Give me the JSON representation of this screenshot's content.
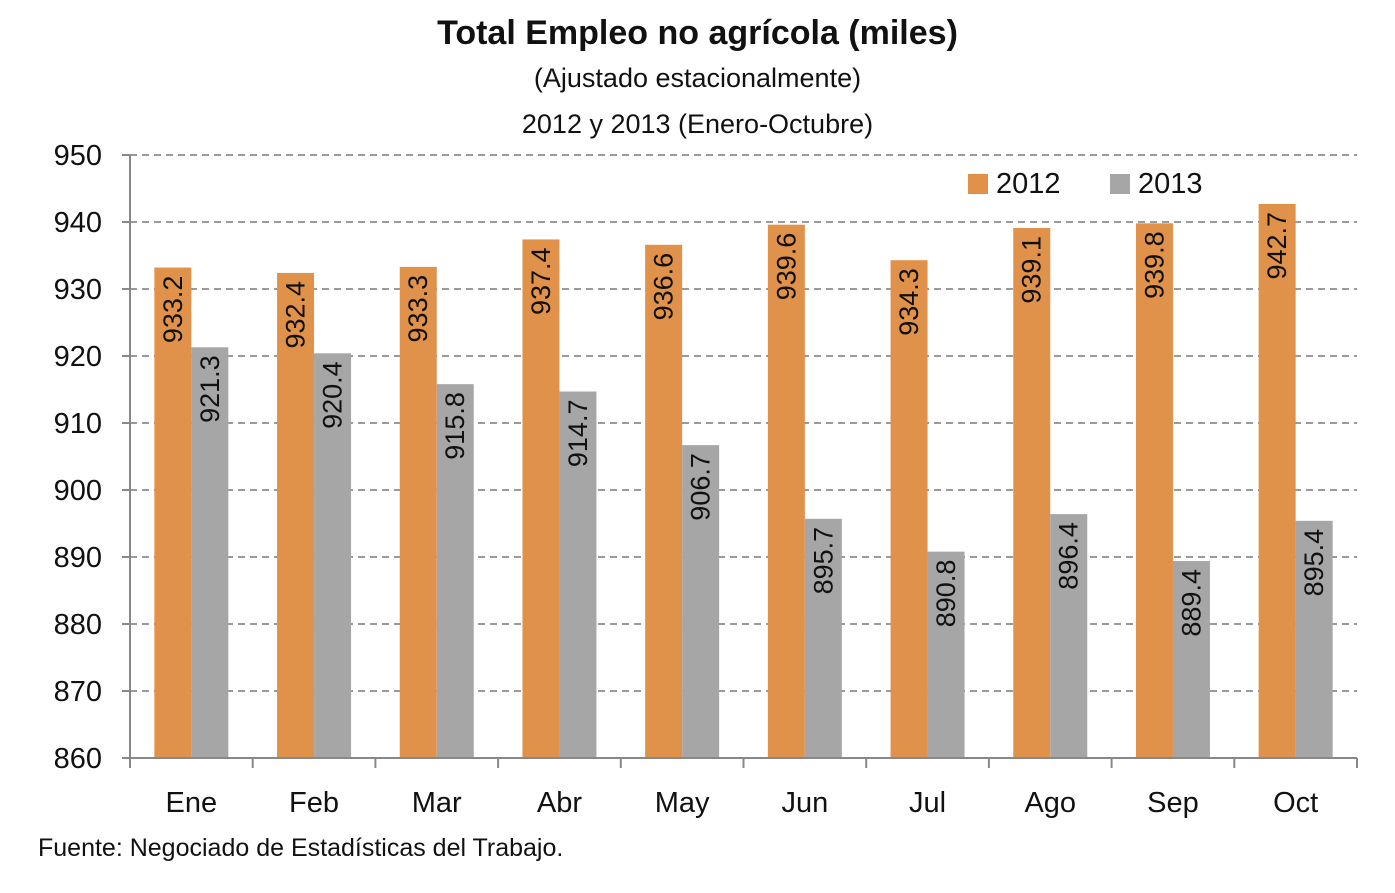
{
  "chart_data": {
    "type": "bar",
    "title": "Total Empleo no agrícola (miles)",
    "subtitle": "(Ajustado estacionalmente)",
    "subtitle2": "2012 y 2013 (Enero-Octubre)",
    "categories": [
      "Ene",
      "Feb",
      "Mar",
      "Abr",
      "May",
      "Jun",
      "Jul",
      "Ago",
      "Sep",
      "Oct"
    ],
    "series": [
      {
        "name": "2012",
        "color": "#E0914A",
        "values": [
          933.2,
          932.4,
          933.3,
          937.4,
          936.6,
          939.6,
          934.3,
          939.1,
          939.8,
          942.7
        ],
        "labels": [
          "933.2",
          "932.4",
          "933.3",
          "937.4",
          "936.6",
          "939.6",
          "934.3",
          "939.1",
          "939.8",
          "942.7"
        ]
      },
      {
        "name": "2013",
        "color": "#A6A6A6",
        "values": [
          921.3,
          920.4,
          915.8,
          914.7,
          906.7,
          895.7,
          890.8,
          896.4,
          889.4,
          895.4
        ],
        "labels": [
          "921.3",
          "920.4",
          "915.8",
          "914.7",
          "906.7",
          "895.7",
          "890.8",
          "896.4",
          "889.4",
          "895.4"
        ]
      }
    ],
    "ylim": [
      860,
      950
    ],
    "yticks": [
      860,
      870,
      880,
      890,
      900,
      910,
      920,
      930,
      940,
      950
    ],
    "ytick_labels": [
      "860",
      "870",
      "880",
      "890",
      "900",
      "910",
      "920",
      "930",
      "940",
      "950"
    ],
    "grid": true,
    "legend_position": "top-right",
    "source": "Fuente: Negociado de Estadísticas del Trabajo."
  }
}
